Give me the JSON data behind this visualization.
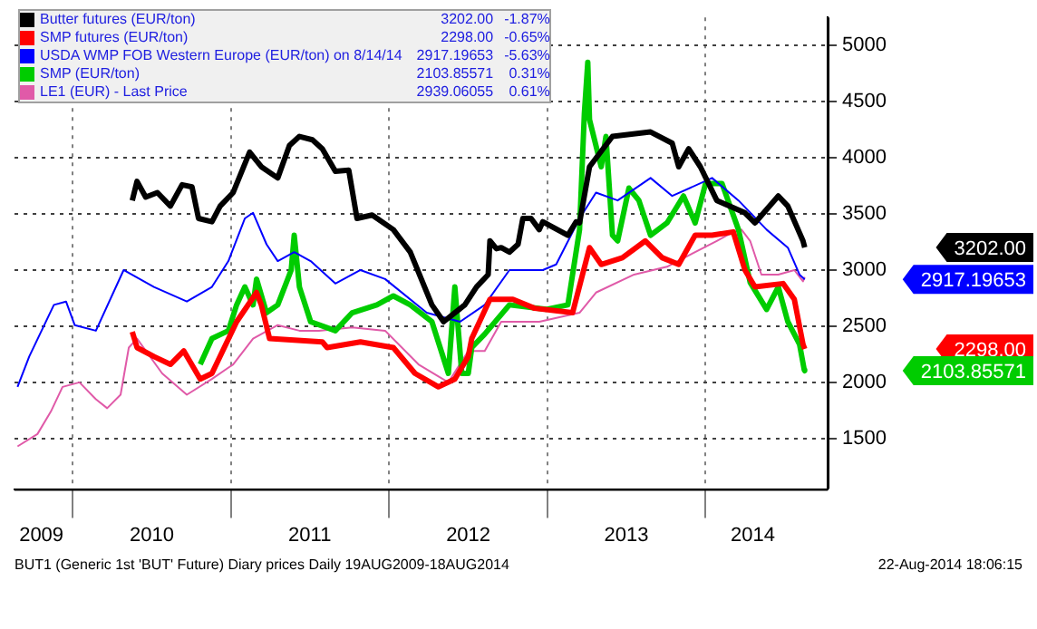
{
  "chart_data": {
    "type": "line",
    "series": [
      {
        "name": "Butter futures (EUR/ton)",
        "color": "#000000",
        "x": [
          "2010-05-18",
          "2010-05-29",
          "2010-06-18",
          "2010-07-15",
          "2010-08-14",
          "2010-09-10",
          "2010-10-03",
          "2010-10-18",
          "2010-11-18",
          "2010-12-07",
          "2011-01-06",
          "2011-02-13",
          "2011-03-12",
          "2011-04-19",
          "2011-05-16",
          "2011-06-08",
          "2011-07-08",
          "2011-07-31",
          "2011-08-30",
          "2011-09-30",
          "2011-10-19",
          "2011-11-23",
          "2012-01-11",
          "2012-02-19",
          "2012-04-09",
          "2012-05-06",
          "2012-06-01",
          "2012-06-24",
          "2012-07-21",
          "2012-08-17",
          "2012-08-21",
          "2012-09-05",
          "2012-09-16",
          "2012-10-05",
          "2012-10-25",
          "2012-11-05",
          "2012-11-24",
          "2012-12-13",
          "2012-12-21",
          "2013-02-17",
          "2013-03-08",
          "2013-03-16",
          "2013-04-08",
          "2013-05-31",
          "2013-08-27",
          "2013-10-16",
          "2013-10-31",
          "2013-11-23",
          "2013-12-20",
          "2014-01-27",
          "2014-04-02",
          "2014-04-25",
          "2014-06-18",
          "2014-07-10",
          "2014-08-14",
          "2014-08-18"
        ],
        "values": [
          3620,
          3790,
          3650,
          3690,
          3570,
          3760,
          3740,
          3460,
          3430,
          3570,
          3690,
          4050,
          3920,
          3820,
          4110,
          4190,
          4160,
          4080,
          3880,
          3890,
          3460,
          3490,
          3360,
          3160,
          2690,
          2540,
          2620,
          2690,
          2850,
          2960,
          3260,
          3190,
          3200,
          3160,
          3230,
          3460,
          3460,
          3360,
          3430,
          3310,
          3430,
          3420,
          3920,
          4190,
          4230,
          4130,
          3920,
          4080,
          3920,
          3620,
          3510,
          3420,
          3660,
          3570,
          3260,
          3202
        ]
      },
      {
        "name": "SMP futures (EUR/ton)",
        "color": "#ff0000",
        "x": [
          "2010-05-18",
          "2010-05-29",
          "2010-07-07",
          "2010-08-14",
          "2010-09-14",
          "2010-10-22",
          "2010-11-18",
          "2011-01-14",
          "2011-03-01",
          "2011-03-12",
          "2011-03-31",
          "2011-07-31",
          "2011-08-11",
          "2011-10-27",
          "2012-01-11",
          "2012-03-01",
          "2012-04-24",
          "2012-06-01",
          "2012-07-02",
          "2012-07-10",
          "2012-08-21",
          "2012-10-13",
          "2012-12-02",
          "2013-02-28",
          "2013-04-08",
          "2013-05-05",
          "2013-06-23",
          "2013-08-15",
          "2013-09-23",
          "2013-10-31",
          "2013-12-08",
          "2014-01-16",
          "2014-03-06",
          "2014-04-02",
          "2014-04-25",
          "2014-06-29",
          "2014-07-25",
          "2014-08-14",
          "2014-08-18"
        ],
        "values": [
          2450,
          2310,
          2230,
          2160,
          2280,
          2030,
          2080,
          2540,
          2800,
          2690,
          2390,
          2360,
          2310,
          2360,
          2310,
          2080,
          1960,
          2030,
          2230,
          2390,
          2740,
          2740,
          2660,
          2620,
          3200,
          3050,
          3110,
          3260,
          3110,
          3050,
          3310,
          3310,
          3340,
          3000,
          2850,
          2880,
          2740,
          2340,
          2298
        ]
      },
      {
        "name": "USDA WMP FOB Western Europe (EUR/ton) on 8/14/14",
        "color": "#0000ff",
        "x": [
          "2009-08-26",
          "2009-09-22",
          "2009-11-18",
          "2009-12-16",
          "2010-01-05",
          "2010-02-23",
          "2010-04-28",
          "2010-07-07",
          "2010-09-21",
          "2010-11-18",
          "2010-12-26",
          "2011-02-02",
          "2011-02-21",
          "2011-03-24",
          "2011-04-19",
          "2011-05-27",
          "2011-07-04",
          "2011-08-30",
          "2011-10-27",
          "2011-12-23",
          "2012-03-28",
          "2012-06-13",
          "2012-08-09",
          "2012-10-05",
          "2012-12-21",
          "2013-01-21",
          "2013-03-16",
          "2013-04-23",
          "2013-06-12",
          "2013-08-27",
          "2013-10-16",
          "2014-01-16",
          "2014-03-18",
          "2014-05-22",
          "2014-07-10",
          "2014-08-06",
          "2014-08-18"
        ],
        "values": [
          1960,
          2230,
          2690,
          2720,
          2510,
          2460,
          3000,
          2850,
          2720,
          2850,
          3080,
          3460,
          3510,
          3230,
          3080,
          3160,
          3080,
          2880,
          3000,
          2920,
          2620,
          2540,
          2690,
          3000,
          3000,
          3050,
          3460,
          3690,
          3620,
          3820,
          3660,
          3820,
          3620,
          3360,
          3200,
          2960,
          2917.19653
        ]
      },
      {
        "name": "SMP (EUR/ton)",
        "color": "#00cc00",
        "x": [
          "2010-10-22",
          "2010-11-18",
          "2010-12-26",
          "2011-01-14",
          "2011-02-02",
          "2011-02-21",
          "2011-03-01",
          "2011-03-24",
          "2011-04-19",
          "2011-05-20",
          "2011-05-27",
          "2011-06-08",
          "2011-07-04",
          "2011-08-30",
          "2011-10-08",
          "2011-12-04",
          "2012-01-11",
          "2012-02-19",
          "2012-04-09",
          "2012-05-17",
          "2012-06-01",
          "2012-06-17",
          "2012-07-02",
          "2012-07-10",
          "2012-08-09",
          "2012-10-05",
          "2012-12-29",
          "2013-02-17",
          "2013-03-16",
          "2013-03-27",
          "2013-04-04",
          "2013-04-08",
          "2013-05-05",
          "2013-05-16",
          "2013-05-31",
          "2013-06-12",
          "2013-07-08",
          "2013-07-31",
          "2013-08-27",
          "2013-10-04",
          "2013-11-11",
          "2013-12-08",
          "2014-01-01",
          "2014-02-08",
          "2014-03-18",
          "2014-04-14",
          "2014-05-22",
          "2014-06-18",
          "2014-07-10",
          "2014-08-06",
          "2014-08-17",
          "2014-08-18"
        ],
        "values": [
          2160,
          2390,
          2460,
          2690,
          2850,
          2690,
          2920,
          2620,
          2690,
          3000,
          3310,
          2850,
          2540,
          2460,
          2620,
          2690,
          2770,
          2690,
          2540,
          2080,
          2850,
          2080,
          2080,
          2310,
          2430,
          2690,
          2650,
          2690,
          3360,
          4390,
          4850,
          4340,
          3920,
          4190,
          3310,
          3260,
          3730,
          3620,
          3310,
          3420,
          3660,
          3420,
          3770,
          3770,
          3360,
          2890,
          2650,
          2850,
          2540,
          2340,
          2110,
          2103.85571
        ]
      },
      {
        "name": "LE1 (EUR) - Last Price",
        "color": "#e05aa8",
        "x": [
          "2009-08-26",
          "2009-10-11",
          "2009-11-11",
          "2009-12-08",
          "2010-01-16",
          "2010-02-23",
          "2010-03-21",
          "2010-04-21",
          "2010-05-10",
          "2010-05-29",
          "2010-07-26",
          "2010-09-21",
          "2010-11-18",
          "2011-01-06",
          "2011-02-21",
          "2011-04-19",
          "2011-06-08",
          "2011-07-23",
          "2011-10-08",
          "2011-12-23",
          "2012-03-09",
          "2012-05-17",
          "2012-07-02",
          "2012-08-09",
          "2012-09-16",
          "2012-12-13",
          "2013-03-16",
          "2013-04-23",
          "2013-07-20",
          "2013-10-04",
          "2013-12-08",
          "2014-01-27",
          "2014-03-06",
          "2014-03-25",
          "2014-04-14",
          "2014-05-10",
          "2014-06-18",
          "2014-07-25",
          "2014-08-14",
          "2014-08-18"
        ],
        "values": [
          1430,
          1540,
          1740,
          1960,
          2000,
          1850,
          1770,
          1890,
          2310,
          2390,
          2080,
          1890,
          2030,
          2160,
          2390,
          2510,
          2460,
          2460,
          2490,
          2460,
          2160,
          2000,
          2280,
          2280,
          2540,
          2540,
          2620,
          2800,
          2960,
          3030,
          3160,
          3260,
          3340,
          3360,
          3260,
          2960,
          2960,
          3000,
          2900,
          2939.06055
        ]
      }
    ],
    "xlim": [
      "2009-08-19",
      "2014-10-10"
    ],
    "xticks": [
      {
        "value": "2009-10-20",
        "label": "2009"
      },
      {
        "value": "2010-01-01",
        "label": null
      },
      {
        "value": "2010-07-02",
        "label": "2010"
      },
      {
        "value": "2011-01-01",
        "label": null
      },
      {
        "value": "2011-07-02",
        "label": "2011"
      },
      {
        "value": "2012-01-01",
        "label": null
      },
      {
        "value": "2012-07-02",
        "label": "2012"
      },
      {
        "value": "2013-01-01",
        "label": null
      },
      {
        "value": "2013-07-02",
        "label": "2013"
      },
      {
        "value": "2014-01-01",
        "label": null
      },
      {
        "value": "2014-04-20",
        "label": "2014"
      }
    ],
    "ylim": [
      1050,
      5250
    ],
    "yticks": [
      1500,
      2000,
      2500,
      3000,
      3500,
      4000,
      4500,
      5000
    ],
    "grid": true,
    "legend": "top left",
    "annotations": [
      "3202.00",
      "-1.87%",
      "2298.00",
      "-0.65%",
      "2917.19653",
      "-5.63%",
      "2103.85571",
      "0.31%",
      "2939.06055",
      "0.61%",
      "3202.00",
      "2298.00",
      "2917.19653",
      "2103.85571",
      "BUT1 (Generic 1st 'BUT' Future) Diary prices  Daily 19AUG2009-18AUG2014",
      "22-Aug-2014 18:06:15"
    ]
  }
}
